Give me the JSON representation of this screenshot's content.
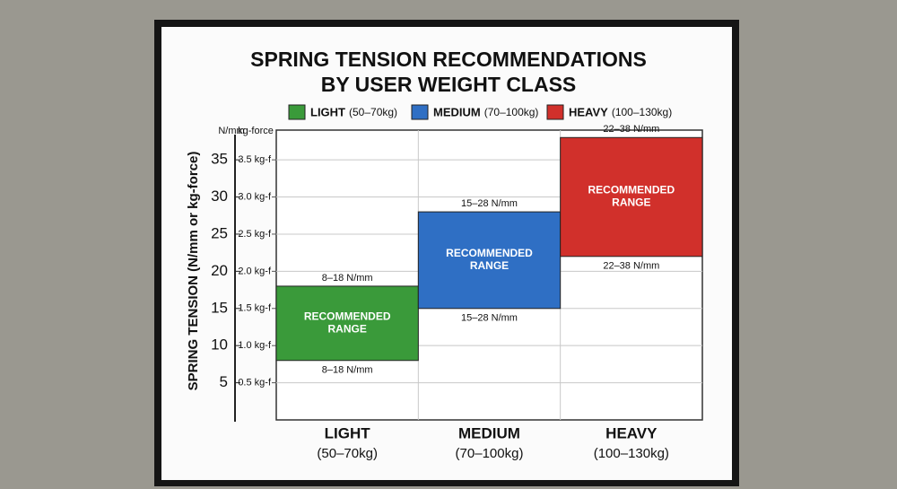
{
  "chart_data": {
    "type": "range-bar",
    "title": [
      "SPRING TENSION RECOMMENDATIONS",
      "BY USER WEIGHT CLASS"
    ],
    "y_unit": "N/mm",
    "y2_unit": "kg-force",
    "ylabel": "SPRING TENSION (N/mm or kg-force)",
    "categories": [
      "LIGHT",
      "MEDIUM",
      "HEAVY"
    ],
    "category_sublabels": [
      "(50–70kg)",
      "(70–100kg)",
      "(100–130kg)"
    ],
    "colors": [
      "#3a9a3a",
      "#2f6fc4",
      "#d1302b"
    ],
    "low": [
      8,
      15,
      22
    ],
    "high": [
      18,
      28,
      38
    ],
    "value_labels": [
      "8–18 N/mm",
      "15–28 N/mm",
      "22–38 N/mm"
    ],
    "bar_text": [
      "RECOMMENDED",
      "RANGE"
    ],
    "ylim": [
      0,
      39
    ],
    "yticks": [
      5,
      10,
      15,
      20,
      25,
      30,
      35
    ],
    "y2lim": [
      0,
      3.9
    ],
    "y2ticks": [
      {
        "value": 0.5,
        "label": "0.5 kg-f"
      },
      {
        "value": 1.0,
        "label": "1.0 kg-f"
      },
      {
        "value": 1.5,
        "label": "1.5 kg-f"
      },
      {
        "value": 2.0,
        "label": "2.0 kg-f"
      },
      {
        "value": 2.5,
        "label": "2.5 kg-f"
      },
      {
        "value": 3.0,
        "label": "3.0 kg-f"
      },
      {
        "value": 3.5,
        "label": "3.5 kg-f"
      }
    ],
    "grid": true
  }
}
